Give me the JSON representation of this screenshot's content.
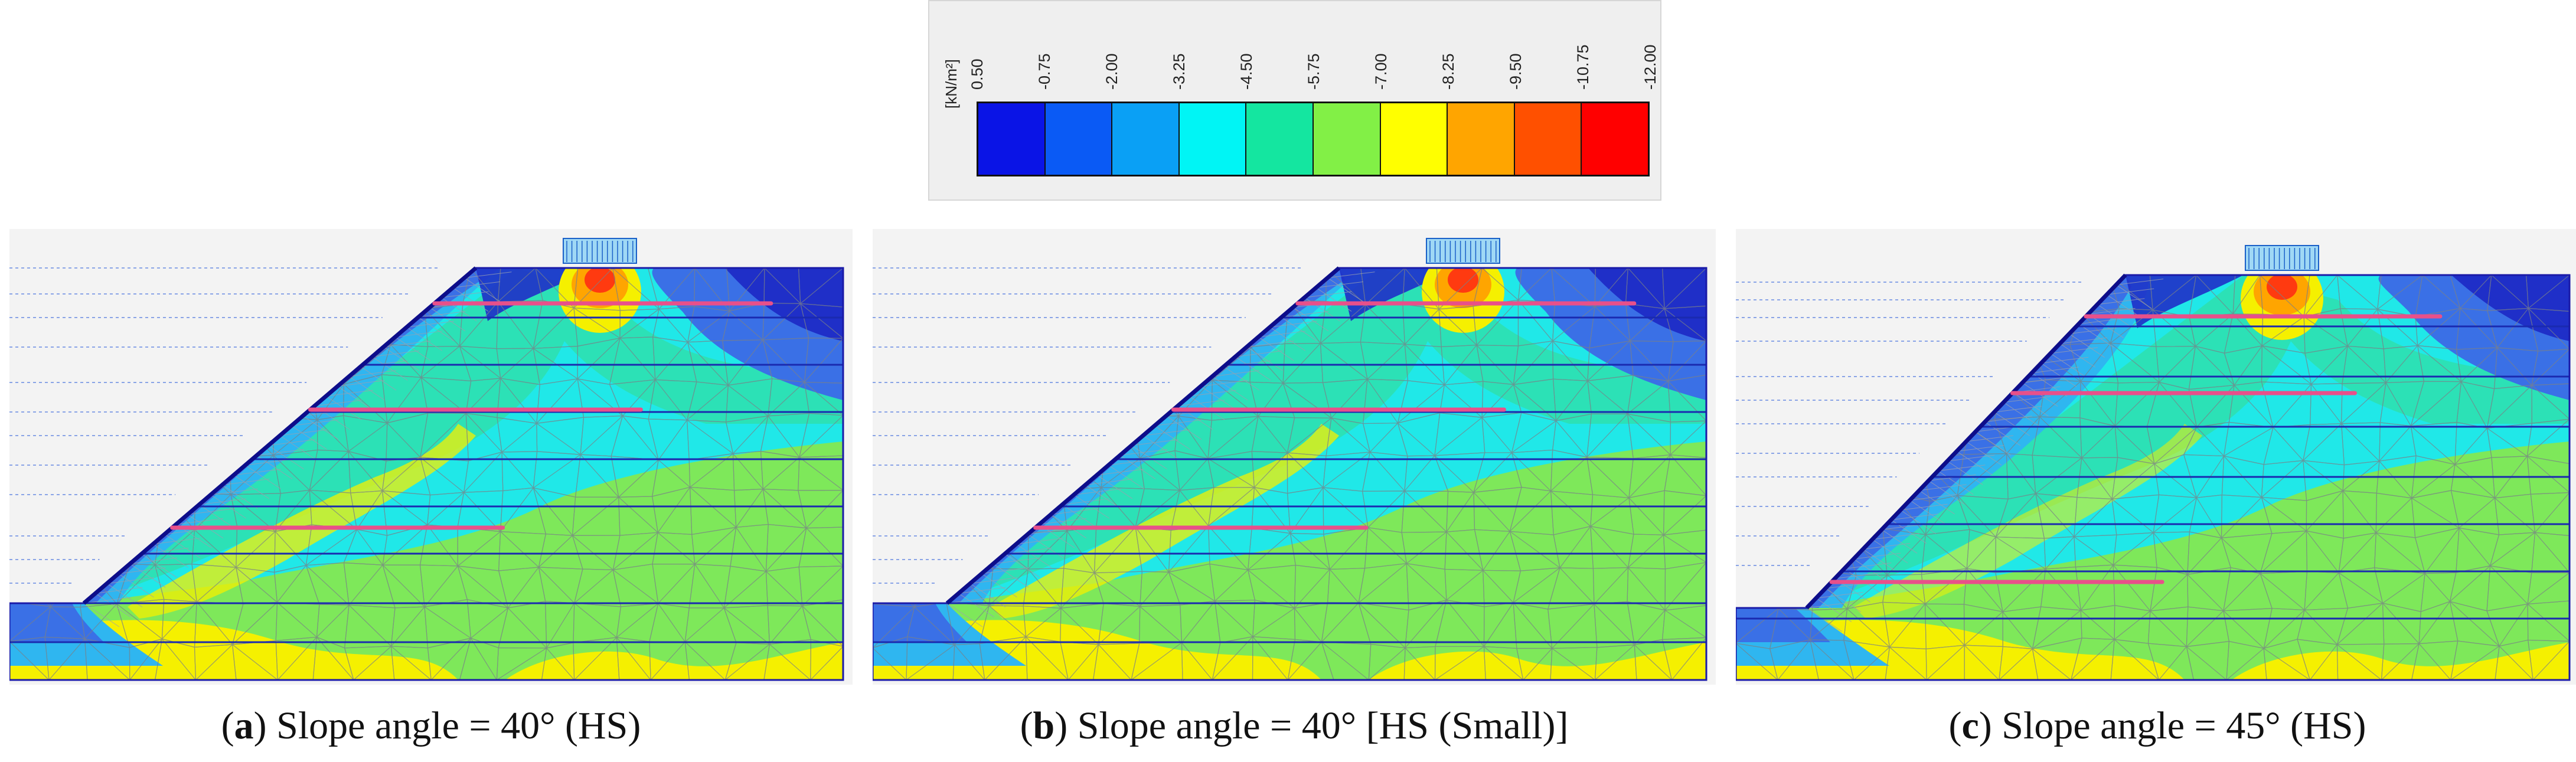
{
  "legend": {
    "unit": "[kN/m²]",
    "ticks": [
      "0.50",
      "-0.75",
      "-2.00",
      "-3.25",
      "-4.50",
      "-5.75",
      "-7.00",
      "-8.25",
      "-9.50",
      "-10.75",
      "-12.00"
    ],
    "colors": [
      "#0a14e6",
      "#0a5af5",
      "#0aa0f5",
      "#00f5f5",
      "#14e6a0",
      "#82f046",
      "#ffff00",
      "#ffa500",
      "#ff5000",
      "#ff0000"
    ]
  },
  "panels": [
    {
      "id": "a",
      "letter": "a",
      "caption": "Slope angle = 40° (HS)",
      "slope_deg": 40
    },
    {
      "id": "b",
      "letter": "b",
      "caption": "Slope angle = 40° [HS (Small)]",
      "slope_deg": 40
    },
    {
      "id": "c",
      "letter": "c",
      "caption": "Slope angle = 45° (HS)",
      "slope_deg": 45
    }
  ],
  "palette": {
    "deep_blue": "#1f2fc8",
    "blue": "#3a70e6",
    "cyan_blue": "#2fb6f0",
    "cyan": "#20e8e8",
    "teal": "#2ee0b0",
    "green": "#7ee85a",
    "yellow": "#f5f000",
    "orange": "#ffa500",
    "red": "#ff3a10",
    "nail": "#e8508a",
    "mesh": "#7a8088",
    "ground_line": "#1a1aa8"
  }
}
